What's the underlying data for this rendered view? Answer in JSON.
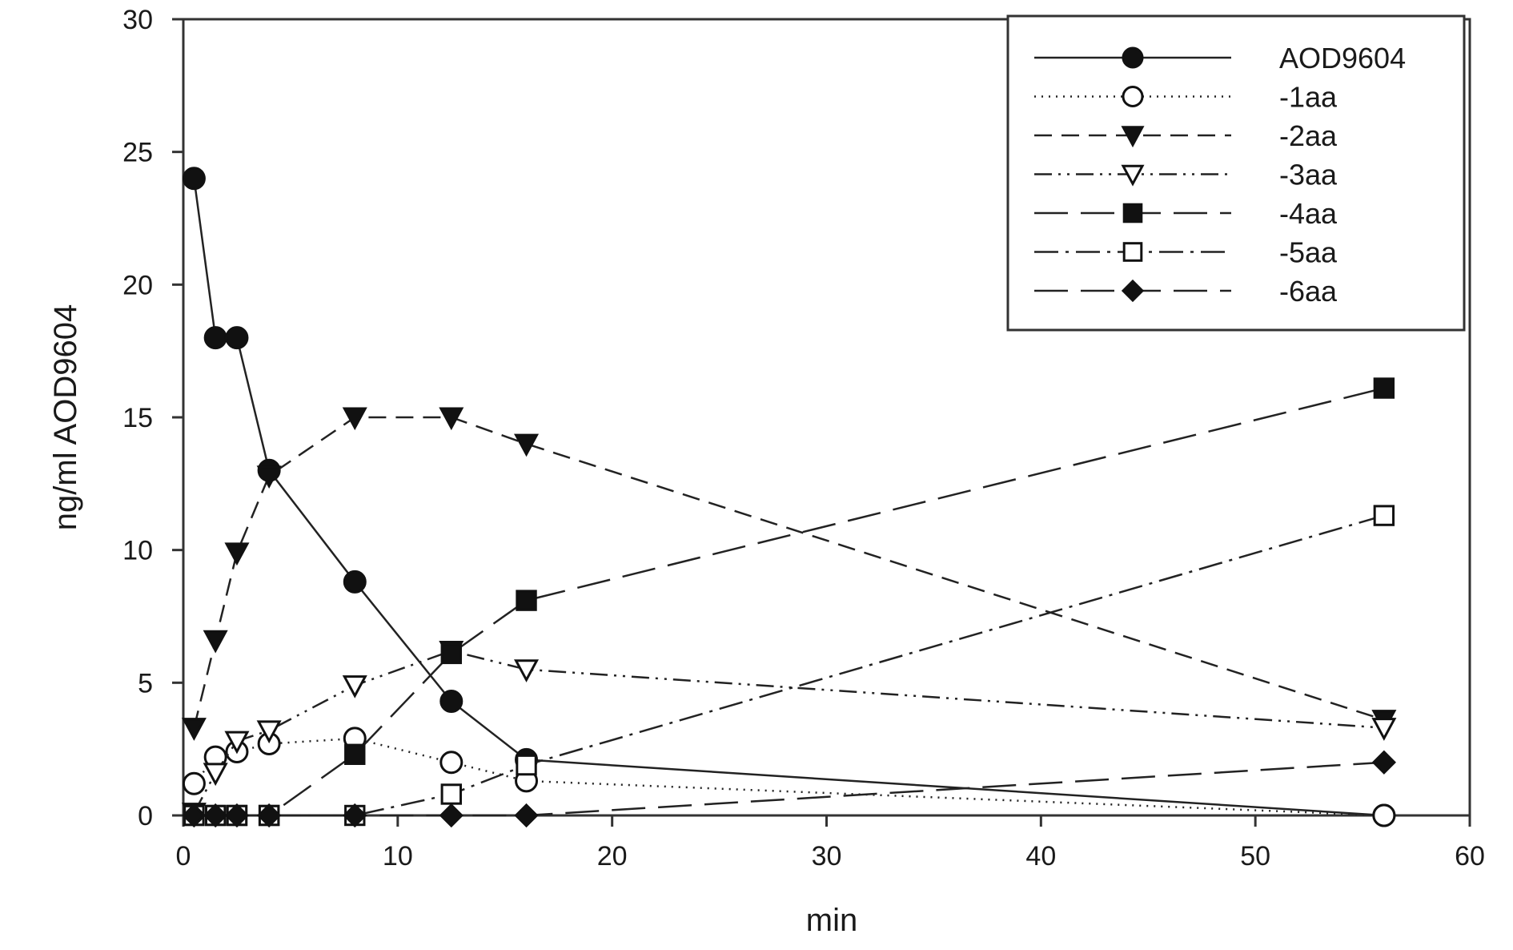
{
  "chart_data": {
    "type": "line",
    "title": "",
    "xlabel": "min",
    "ylabel": "ng/ml AOD9604",
    "xlim": [
      0,
      60
    ],
    "ylim": [
      0,
      30
    ],
    "xticks": [
      0,
      10,
      20,
      30,
      40,
      50,
      60
    ],
    "yticks": [
      0,
      5,
      10,
      15,
      20,
      25,
      30
    ],
    "grid": false,
    "legend_position": "top-right",
    "series": [
      {
        "name": "AOD9604",
        "marker": "circle-filled",
        "line": "solid",
        "x": [
          0.5,
          1.5,
          2.5,
          4,
          8,
          12.5,
          16,
          56
        ],
        "y": [
          24,
          18,
          18,
          13,
          8.8,
          4.3,
          2.1,
          0
        ]
      },
      {
        "name": "-1aa",
        "marker": "circle-open",
        "line": "dotted",
        "x": [
          0.5,
          1.5,
          2.5,
          4,
          8,
          12.5,
          16,
          56
        ],
        "y": [
          1.2,
          2.2,
          2.4,
          2.7,
          2.9,
          2.0,
          1.3,
          0
        ]
      },
      {
        "name": "-2aa",
        "marker": "triangle-down-filled",
        "line": "dashed",
        "x": [
          0.5,
          1.5,
          2.5,
          4,
          8,
          12.5,
          16,
          56
        ],
        "y": [
          3.3,
          6.6,
          9.9,
          12.8,
          15,
          15,
          14,
          3.6
        ]
      },
      {
        "name": "-3aa",
        "marker": "triangle-down-open",
        "line": "dash-dot-dot",
        "x": [
          0.5,
          1.5,
          2.5,
          4,
          8,
          12.5,
          16,
          56
        ],
        "y": [
          0.1,
          1.6,
          2.8,
          3.2,
          4.9,
          6.2,
          5.5,
          3.3
        ]
      },
      {
        "name": "-4aa",
        "marker": "square-filled",
        "line": "long-dash",
        "x": [
          0.5,
          1.5,
          2.5,
          4,
          8,
          12.5,
          16,
          56
        ],
        "y": [
          0,
          0,
          0,
          0,
          2.3,
          6.1,
          8.1,
          16.1
        ]
      },
      {
        "name": "-5aa",
        "marker": "square-open",
        "line": "dash-dot",
        "x": [
          0.5,
          1.5,
          2.5,
          4,
          8,
          12.5,
          16,
          56
        ],
        "y": [
          0,
          0,
          0,
          0,
          0,
          0.8,
          1.9,
          11.3
        ]
      },
      {
        "name": "-6aa",
        "marker": "diamond-filled",
        "line": "long-dash",
        "x": [
          0.5,
          1.5,
          2.5,
          4,
          8,
          12.5,
          16,
          56
        ],
        "y": [
          0,
          0,
          0,
          0,
          0,
          0,
          0,
          2
        ]
      }
    ]
  }
}
